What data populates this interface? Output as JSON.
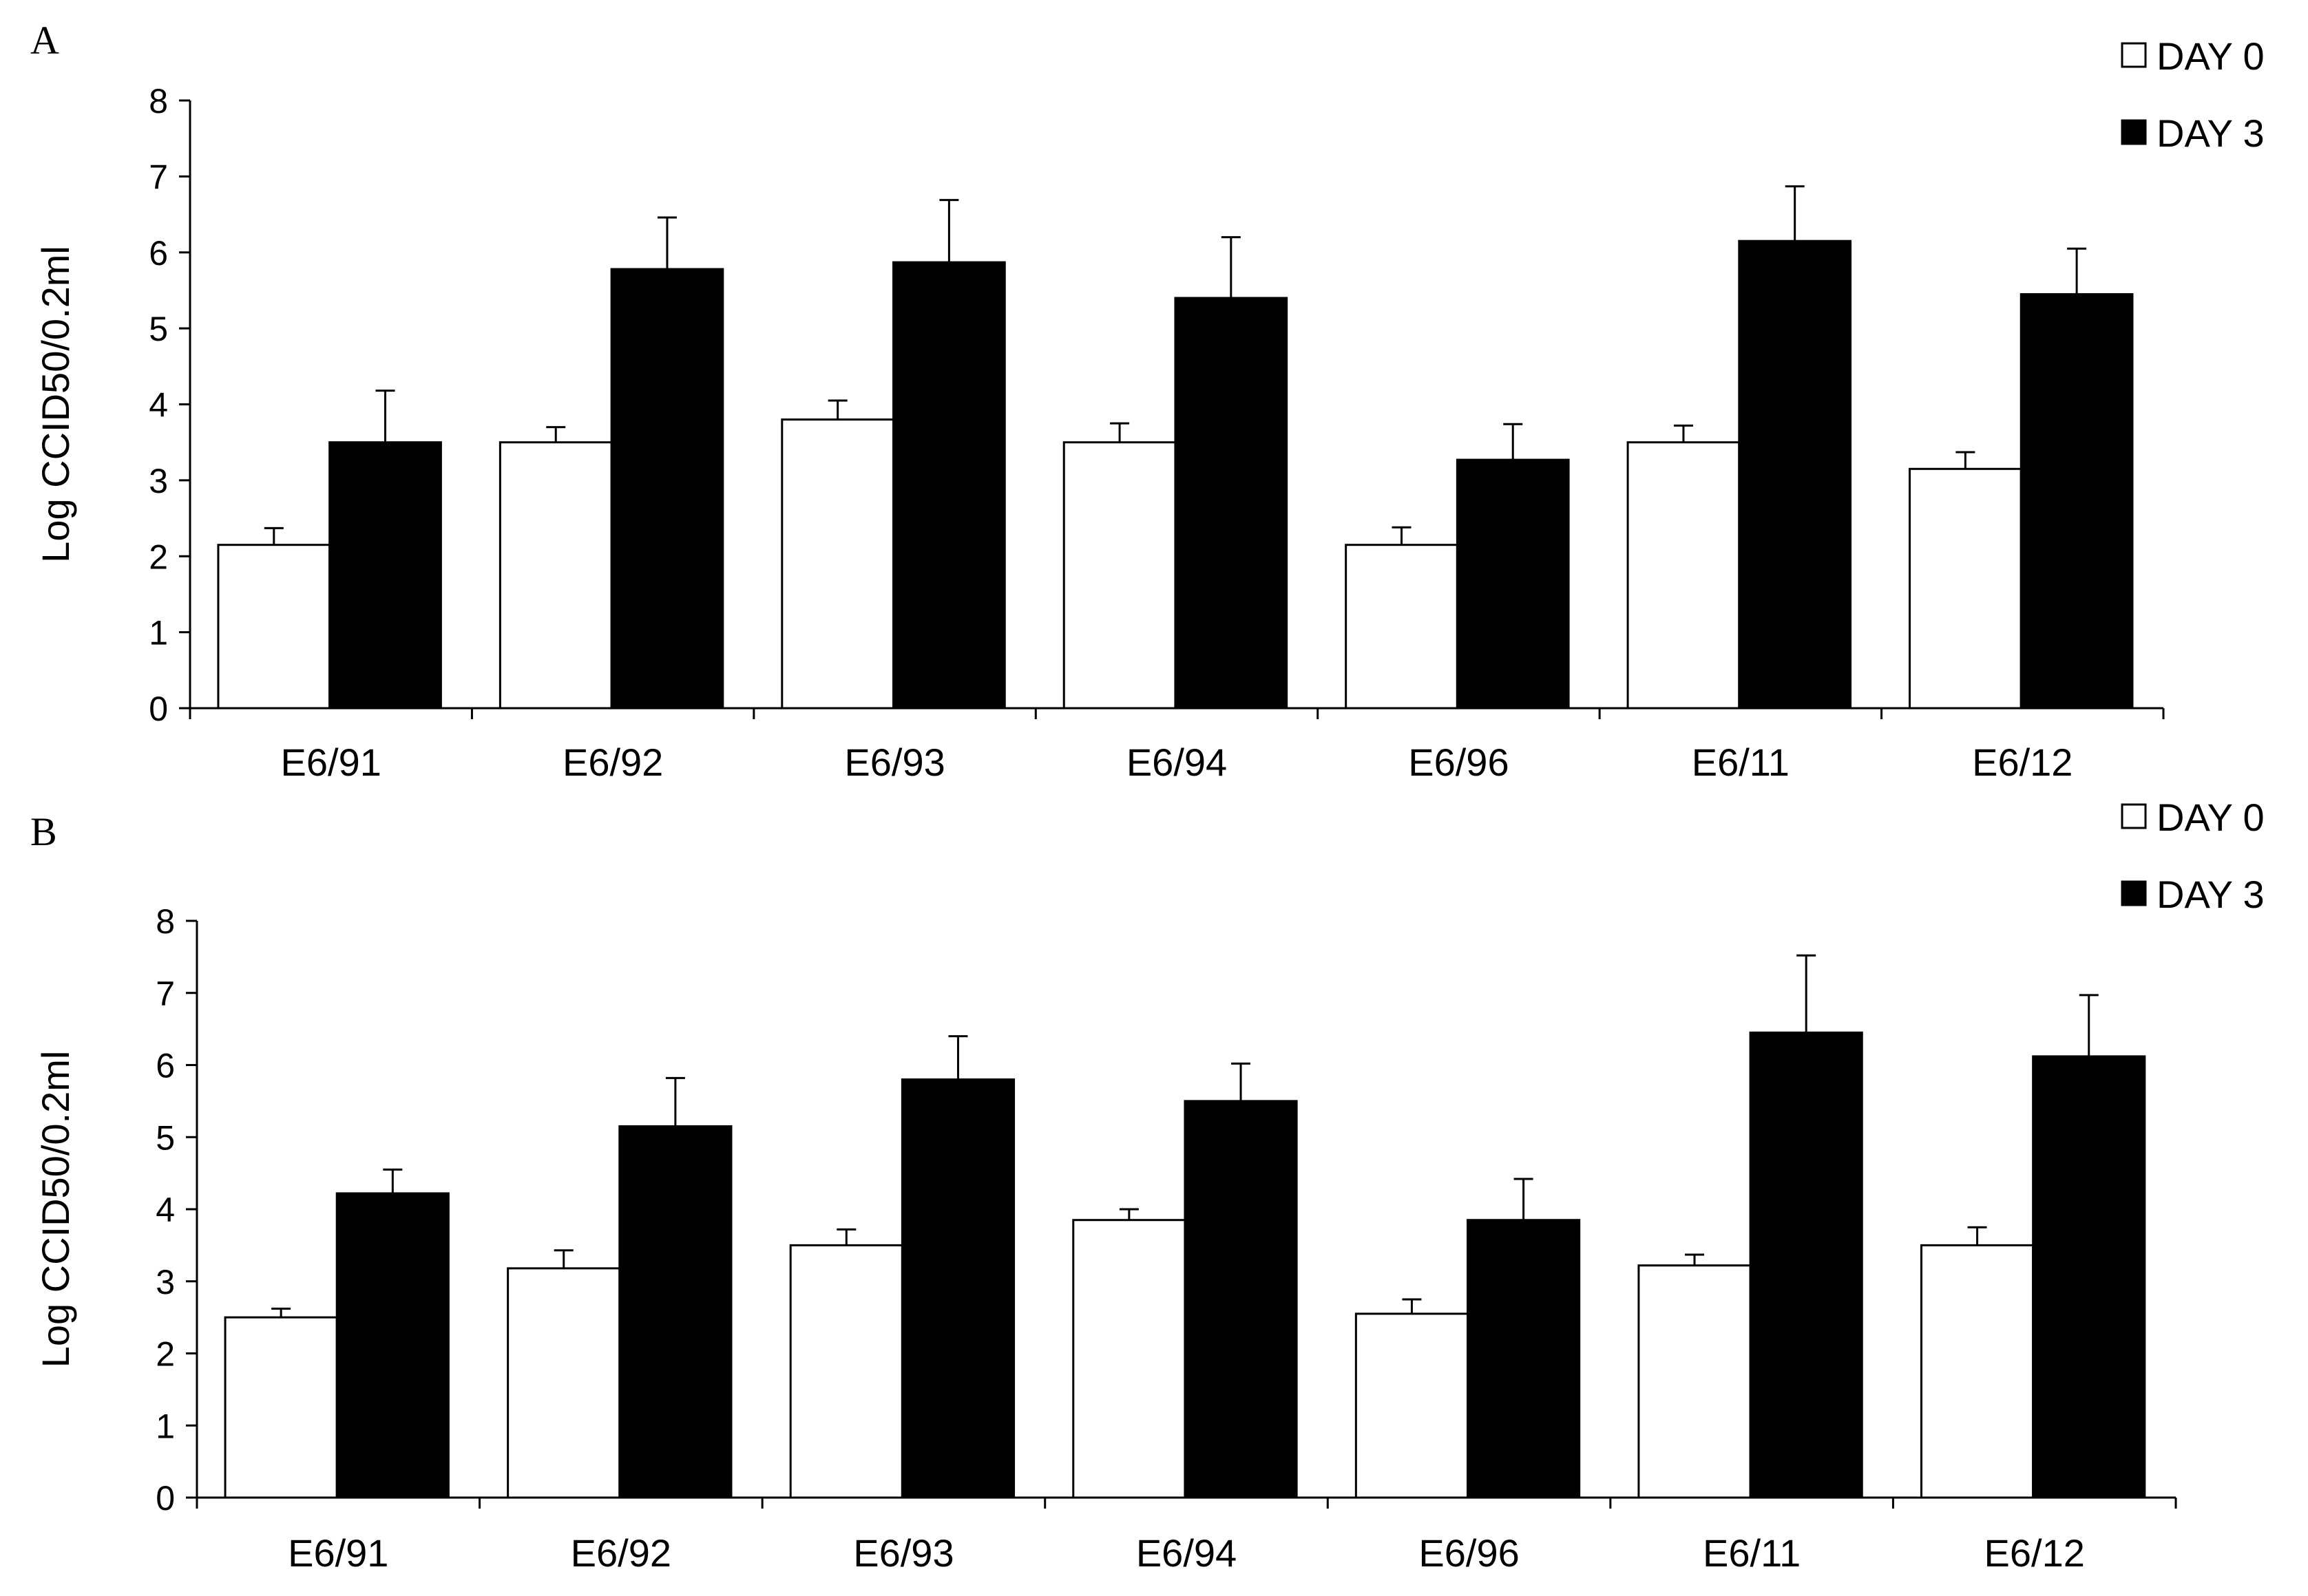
{
  "chart_data": [
    {
      "panel": "A",
      "type": "bar",
      "categories": [
        "E6/91",
        "E6/92",
        "E6/93",
        "E6/94",
        "E6/96",
        "E6/11",
        "E6/12"
      ],
      "series": [
        {
          "name": "DAY 0",
          "values": [
            2.15,
            3.5,
            3.8,
            3.5,
            2.15,
            3.5,
            3.15
          ],
          "errors": [
            0.22,
            0.2,
            0.25,
            0.25,
            0.23,
            0.22,
            0.22
          ],
          "color": "#ffffff"
        },
        {
          "name": "DAY 3",
          "values": [
            3.5,
            5.78,
            5.87,
            5.4,
            3.27,
            6.15,
            5.45
          ],
          "errors": [
            0.68,
            0.68,
            0.82,
            0.8,
            0.47,
            0.72,
            0.6
          ],
          "color": "#000000"
        }
      ],
      "ylabel": "Log CCID50/0.2ml",
      "ylim": [
        0,
        8
      ],
      "yticks": [
        "0",
        "1",
        "2",
        "3",
        "4",
        "5",
        "6",
        "7",
        "8"
      ],
      "grid": false,
      "legend": "top-right"
    },
    {
      "panel": "B",
      "type": "bar",
      "categories": [
        "E6/91",
        "E6/92",
        "E6/93",
        "E6/94",
        "E6/96",
        "E6/11",
        "E6/12"
      ],
      "series": [
        {
          "name": "DAY 0",
          "values": [
            2.5,
            3.18,
            3.5,
            3.85,
            2.55,
            3.22,
            3.5
          ],
          "errors": [
            0.12,
            0.25,
            0.22,
            0.15,
            0.2,
            0.15,
            0.25
          ],
          "color": "#ffffff"
        },
        {
          "name": "DAY 3",
          "values": [
            4.22,
            5.15,
            5.8,
            5.5,
            3.85,
            6.45,
            6.12
          ],
          "errors": [
            0.33,
            0.67,
            0.6,
            0.52,
            0.57,
            1.07,
            0.85
          ],
          "color": "#000000"
        }
      ],
      "ylabel": "Log CCID50/0.2ml",
      "ylim": [
        0,
        8
      ],
      "yticks": [
        "0",
        "1",
        "2",
        "3",
        "4",
        "5",
        "6",
        "7",
        "8"
      ],
      "grid": false,
      "legend": "top-right"
    }
  ]
}
